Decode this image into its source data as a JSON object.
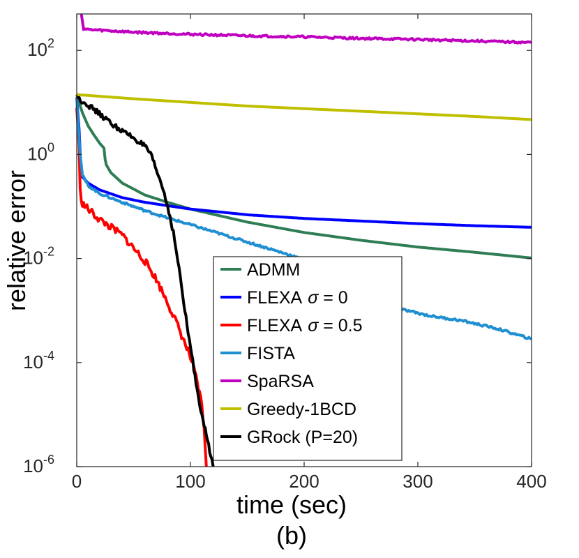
{
  "chart_data": {
    "type": "line",
    "title": "",
    "caption": "(b)",
    "xlabel": "time (sec)",
    "ylabel": "relative error",
    "xlim": [
      0,
      400
    ],
    "ylim_log10": [
      -6,
      2.7
    ],
    "yscale": "log",
    "xticks": [
      {
        "value": 0,
        "label": "0"
      },
      {
        "value": 100,
        "label": "100"
      },
      {
        "value": 200,
        "label": "200"
      },
      {
        "value": 300,
        "label": "300"
      },
      {
        "value": 400,
        "label": "400"
      }
    ],
    "yticks": [
      {
        "log10": 2,
        "base": "10",
        "exp": "2"
      },
      {
        "log10": 0,
        "base": "10",
        "exp": "0"
      },
      {
        "log10": -2,
        "base": "10",
        "exp": "-2"
      },
      {
        "log10": -4,
        "base": "10",
        "exp": "-4"
      },
      {
        "log10": -6,
        "base": "10",
        "exp": "-6"
      }
    ],
    "grid": false,
    "legend_position": "bottom-center",
    "series": [
      {
        "name": "ADMM",
        "legend": {
          "main": "ADMM",
          "sigma": "",
          "rest": ""
        },
        "color": "#2e7d55",
        "noise": 0,
        "points": [
          [
            0,
            1.15
          ],
          [
            5,
            0.8
          ],
          [
            10,
            0.55
          ],
          [
            15,
            0.38
          ],
          [
            20,
            0.22
          ],
          [
            24,
            0.12
          ],
          [
            25,
            -0.1
          ],
          [
            26,
            -0.2
          ],
          [
            30,
            -0.35
          ],
          [
            40,
            -0.55
          ],
          [
            60,
            -0.78
          ],
          [
            80,
            -0.92
          ],
          [
            100,
            -1.05
          ],
          [
            150,
            -1.3
          ],
          [
            200,
            -1.5
          ],
          [
            250,
            -1.65
          ],
          [
            300,
            -1.78
          ],
          [
            350,
            -1.88
          ],
          [
            400,
            -1.99
          ]
        ]
      },
      {
        "name": "FLEXA σ = 0",
        "legend": {
          "main": "FLEXA",
          "sigma": "σ",
          "rest": " = 0"
        },
        "color": "#0000ff",
        "noise": 0,
        "points": [
          [
            0,
            1.1
          ],
          [
            2,
            0.5
          ],
          [
            4,
            -0.4
          ],
          [
            5,
            -0.43
          ],
          [
            10,
            -0.55
          ],
          [
            20,
            -0.68
          ],
          [
            40,
            -0.83
          ],
          [
            60,
            -0.92
          ],
          [
            100,
            -1.05
          ],
          [
            150,
            -1.16
          ],
          [
            200,
            -1.23
          ],
          [
            250,
            -1.28
          ],
          [
            300,
            -1.33
          ],
          [
            350,
            -1.37
          ],
          [
            400,
            -1.4
          ]
        ]
      },
      {
        "name": "FLEXA σ = 0.5",
        "legend": {
          "main": "FLEXA",
          "sigma": "σ",
          "rest": " = 0.5"
        },
        "color": "#ff0000",
        "noise": 0.07,
        "points": [
          [
            0,
            0.9
          ],
          [
            2,
            0.2
          ],
          [
            3,
            -0.7
          ],
          [
            5,
            -0.95
          ],
          [
            10,
            -1.05
          ],
          [
            20,
            -1.25
          ],
          [
            40,
            -1.55
          ],
          [
            60,
            -2.05
          ],
          [
            70,
            -2.4
          ],
          [
            80,
            -2.85
          ],
          [
            90,
            -3.35
          ],
          [
            100,
            -3.9
          ],
          [
            105,
            -4.3
          ],
          [
            110,
            -4.8
          ],
          [
            112,
            -5.3
          ],
          [
            114,
            -6.0
          ]
        ]
      },
      {
        "name": "FISTA",
        "legend": {
          "main": "FISTA",
          "sigma": "",
          "rest": ""
        },
        "color": "#1f8fd1",
        "noise": 0.02,
        "points": [
          [
            0,
            1.1
          ],
          [
            3,
            0.0
          ],
          [
            5,
            -0.4
          ],
          [
            10,
            -0.6
          ],
          [
            20,
            -0.75
          ],
          [
            40,
            -0.92
          ],
          [
            60,
            -1.08
          ],
          [
            80,
            -1.22
          ],
          [
            100,
            -1.35
          ],
          [
            130,
            -1.55
          ],
          [
            160,
            -1.75
          ],
          [
            190,
            -1.95
          ],
          [
            220,
            -2.2
          ],
          [
            250,
            -2.55
          ],
          [
            280,
            -2.95
          ],
          [
            310,
            -3.1
          ],
          [
            340,
            -3.2
          ],
          [
            370,
            -3.35
          ],
          [
            400,
            -3.55
          ]
        ]
      },
      {
        "name": "SpaRSA",
        "legend": {
          "main": "SpaRSA",
          "sigma": "",
          "rest": ""
        },
        "color": "#c000c0",
        "noise": 0.02,
        "points": [
          [
            4,
            2.7
          ],
          [
            6,
            2.42
          ],
          [
            10,
            2.4
          ],
          [
            50,
            2.35
          ],
          [
            100,
            2.31
          ],
          [
            150,
            2.28
          ],
          [
            200,
            2.26
          ],
          [
            250,
            2.23
          ],
          [
            300,
            2.21
          ],
          [
            350,
            2.18
          ],
          [
            400,
            2.15
          ]
        ]
      },
      {
        "name": "Greedy-1BCD",
        "legend": {
          "main": "Greedy-1BCD",
          "sigma": "",
          "rest": ""
        },
        "color": "#bfbf00",
        "noise": 0,
        "points": [
          [
            0,
            1.15
          ],
          [
            50,
            1.07
          ],
          [
            100,
            1.0
          ],
          [
            150,
            0.93
          ],
          [
            200,
            0.88
          ],
          [
            250,
            0.83
          ],
          [
            300,
            0.78
          ],
          [
            350,
            0.73
          ],
          [
            400,
            0.67
          ]
        ]
      },
      {
        "name": "GRock (P=20)",
        "legend": {
          "main": "GRock (P=20)",
          "sigma": "",
          "rest": ""
        },
        "color": "#000000",
        "noise": 0.05,
        "points": [
          [
            0,
            1.1
          ],
          [
            10,
            0.95
          ],
          [
            20,
            0.78
          ],
          [
            30,
            0.6
          ],
          [
            40,
            0.45
          ],
          [
            50,
            0.32
          ],
          [
            60,
            0.15
          ],
          [
            65,
            0.0
          ],
          [
            70,
            -0.3
          ],
          [
            75,
            -0.6
          ],
          [
            80,
            -1.0
          ],
          [
            85,
            -1.5
          ],
          [
            90,
            -2.2
          ],
          [
            95,
            -3.0
          ],
          [
            100,
            -3.7
          ],
          [
            105,
            -4.4
          ],
          [
            110,
            -5.0
          ],
          [
            115,
            -5.5
          ],
          [
            120,
            -6.0
          ]
        ]
      }
    ]
  }
}
